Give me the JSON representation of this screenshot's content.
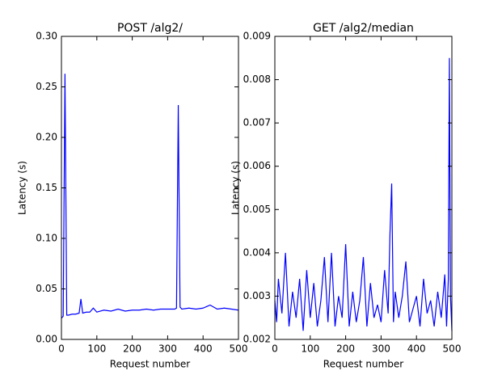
{
  "chart_data": [
    {
      "type": "line",
      "title": "POST /alg2/",
      "xlabel": "Request number",
      "ylabel": "Latency (s)",
      "color": "#0000ff",
      "x": [
        0,
        5,
        10,
        15,
        20,
        30,
        40,
        50,
        55,
        60,
        70,
        80,
        90,
        100,
        120,
        140,
        160,
        180,
        200,
        220,
        240,
        260,
        280,
        300,
        320,
        325,
        330,
        335,
        340,
        360,
        380,
        400,
        420,
        440,
        460,
        480,
        500
      ],
      "values": [
        0.021,
        0.023,
        0.263,
        0.024,
        0.024,
        0.025,
        0.025,
        0.026,
        0.04,
        0.026,
        0.027,
        0.027,
        0.031,
        0.027,
        0.029,
        0.028,
        0.03,
        0.028,
        0.029,
        0.029,
        0.03,
        0.029,
        0.03,
        0.03,
        0.03,
        0.031,
        0.232,
        0.032,
        0.03,
        0.031,
        0.03,
        0.031,
        0.034,
        0.03,
        0.031,
        0.03,
        0.029
      ],
      "xlim": [
        0,
        500
      ],
      "xticks": [
        0,
        100,
        200,
        300,
        400,
        500
      ],
      "ylim": [
        0,
        0.3
      ],
      "yticks": [
        {
          "value": 0,
          "label": "0.00"
        },
        0.05,
        {
          "value": 0.1,
          "label": "0.10"
        },
        0.15,
        {
          "value": 0.2,
          "label": "0.20"
        },
        0.25,
        {
          "value": 0.3,
          "label": "0.30"
        }
      ]
    },
    {
      "type": "line",
      "title": "GET /alg2/median",
      "xlabel": "Request number",
      "ylabel": "Latency (s)",
      "color": "#0000ff",
      "x": [
        0,
        5,
        10,
        20,
        30,
        40,
        50,
        60,
        70,
        80,
        90,
        100,
        110,
        120,
        130,
        140,
        150,
        160,
        170,
        180,
        190,
        200,
        210,
        220,
        230,
        240,
        250,
        260,
        270,
        280,
        290,
        300,
        310,
        320,
        325,
        330,
        335,
        340,
        350,
        360,
        370,
        380,
        390,
        400,
        410,
        420,
        430,
        440,
        450,
        460,
        470,
        480,
        485,
        490,
        493,
        496,
        500
      ],
      "values": [
        0.0029,
        0.0024,
        0.0034,
        0.0026,
        0.004,
        0.0023,
        0.0031,
        0.0025,
        0.0034,
        0.0022,
        0.0036,
        0.0025,
        0.0033,
        0.0023,
        0.0029,
        0.0039,
        0.0024,
        0.004,
        0.0023,
        0.003,
        0.0025,
        0.0042,
        0.0023,
        0.0031,
        0.0024,
        0.0029,
        0.0039,
        0.0023,
        0.0033,
        0.0025,
        0.0028,
        0.0024,
        0.0036,
        0.0026,
        0.0044,
        0.0056,
        0.0024,
        0.0031,
        0.0025,
        0.003,
        0.0038,
        0.0024,
        0.0027,
        0.003,
        0.0023,
        0.0034,
        0.0026,
        0.0029,
        0.0023,
        0.0031,
        0.0025,
        0.0035,
        0.0023,
        0.0034,
        0.0085,
        0.003,
        0.0022
      ],
      "xlim": [
        0,
        500
      ],
      "xticks": [
        0,
        100,
        200,
        300,
        400,
        500
      ],
      "ylim": [
        0.002,
        0.009
      ],
      "yticks": [
        0.002,
        0.003,
        0.004,
        0.005,
        0.006,
        0.007,
        0.008,
        0.009
      ]
    }
  ]
}
